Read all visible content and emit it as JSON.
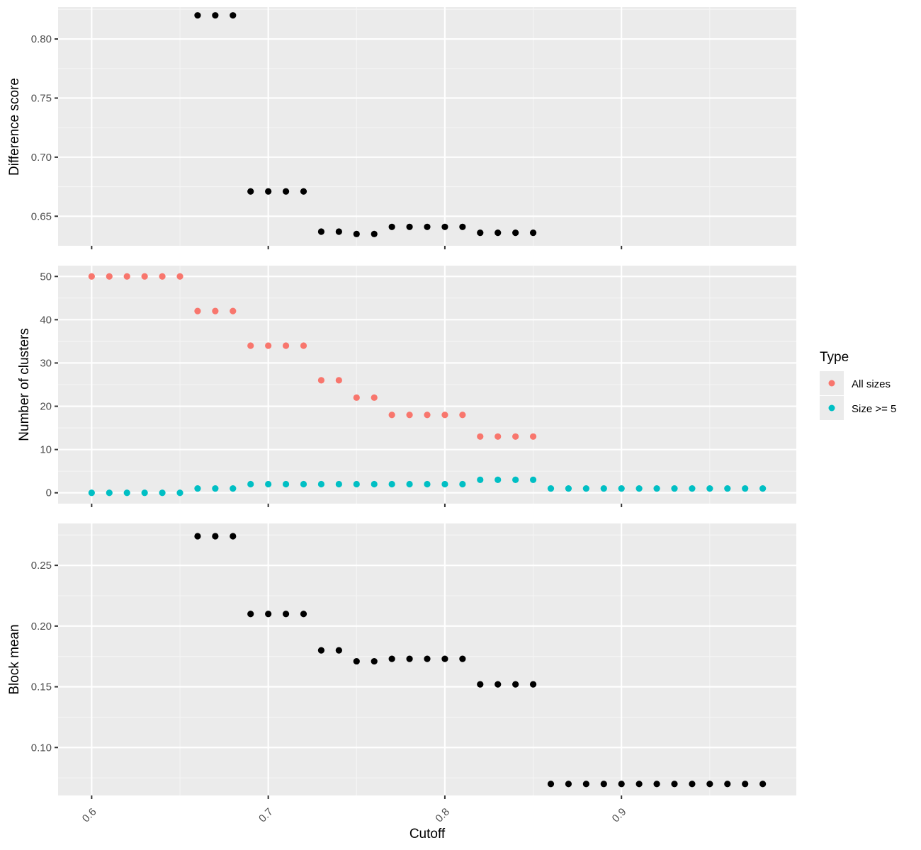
{
  "colors": {
    "panel_bg": "#ebebeb",
    "grid_major": "#ffffff",
    "grid_minor": "#f5f5f5",
    "axis_text": "#4d4d4d",
    "title_text": "#000000",
    "points_black": "#000000",
    "all_sizes": "#f8766d",
    "size_ge_5": "#00bfc4"
  },
  "legend": {
    "title": "Type",
    "items": [
      {
        "label": "All sizes",
        "color": "#f8766d"
      },
      {
        "label": "Size >= 5",
        "color": "#00bfc4"
      }
    ]
  },
  "chart_data": [
    {
      "type": "scatter",
      "xlabel": "Cutoff",
      "ylabel": "Difference score",
      "xlim": [
        0.581,
        0.999
      ],
      "ylim": [
        0.625,
        0.827
      ],
      "x_ticks": [
        0.6,
        0.7,
        0.8,
        0.9
      ],
      "y_ticks": [
        0.65,
        0.7,
        0.75,
        0.8
      ],
      "y_tick_labels": [
        "0.65",
        "0.70",
        "0.75",
        "0.80"
      ],
      "grid": true,
      "series": [
        {
          "color": "#000000",
          "points": [
            [
              0.66,
              0.82
            ],
            [
              0.67,
              0.82
            ],
            [
              0.68,
              0.82
            ],
            [
              0.69,
              0.671
            ],
            [
              0.7,
              0.671
            ],
            [
              0.71,
              0.671
            ],
            [
              0.72,
              0.671
            ],
            [
              0.73,
              0.637
            ],
            [
              0.74,
              0.637
            ],
            [
              0.75,
              0.635
            ],
            [
              0.76,
              0.635
            ],
            [
              0.77,
              0.641
            ],
            [
              0.78,
              0.641
            ],
            [
              0.79,
              0.641
            ],
            [
              0.8,
              0.641
            ],
            [
              0.81,
              0.641
            ],
            [
              0.82,
              0.636
            ],
            [
              0.83,
              0.636
            ],
            [
              0.84,
              0.636
            ],
            [
              0.85,
              0.636
            ]
          ]
        }
      ]
    },
    {
      "type": "scatter",
      "xlabel": "Cutoff",
      "ylabel": "Number of clusters",
      "xlim": [
        0.581,
        0.999
      ],
      "ylim": [
        -2.5,
        52.5
      ],
      "x_ticks": [
        0.6,
        0.7,
        0.8,
        0.9
      ],
      "y_ticks": [
        0,
        10,
        20,
        30,
        40,
        50
      ],
      "y_tick_labels": [
        "0",
        "10",
        "20",
        "30",
        "40",
        "50"
      ],
      "grid": true,
      "legend_position": "right",
      "series": [
        {
          "name": "All sizes",
          "color": "#f8766d",
          "points": [
            [
              0.6,
              50
            ],
            [
              0.61,
              50
            ],
            [
              0.62,
              50
            ],
            [
              0.63,
              50
            ],
            [
              0.64,
              50
            ],
            [
              0.65,
              50
            ],
            [
              0.66,
              42
            ],
            [
              0.67,
              42
            ],
            [
              0.68,
              42
            ],
            [
              0.69,
              34
            ],
            [
              0.7,
              34
            ],
            [
              0.71,
              34
            ],
            [
              0.72,
              34
            ],
            [
              0.73,
              26
            ],
            [
              0.74,
              26
            ],
            [
              0.75,
              22
            ],
            [
              0.76,
              22
            ],
            [
              0.77,
              18
            ],
            [
              0.78,
              18
            ],
            [
              0.79,
              18
            ],
            [
              0.8,
              18
            ],
            [
              0.81,
              18
            ],
            [
              0.82,
              13
            ],
            [
              0.83,
              13
            ],
            [
              0.84,
              13
            ],
            [
              0.85,
              13
            ]
          ]
        },
        {
          "name": "Size >= 5",
          "color": "#00bfc4",
          "points": [
            [
              0.6,
              0
            ],
            [
              0.61,
              0
            ],
            [
              0.62,
              0
            ],
            [
              0.63,
              0
            ],
            [
              0.64,
              0
            ],
            [
              0.65,
              0
            ],
            [
              0.66,
              1
            ],
            [
              0.67,
              1
            ],
            [
              0.68,
              1
            ],
            [
              0.69,
              2
            ],
            [
              0.7,
              2
            ],
            [
              0.71,
              2
            ],
            [
              0.72,
              2
            ],
            [
              0.73,
              2
            ],
            [
              0.74,
              2
            ],
            [
              0.75,
              2
            ],
            [
              0.76,
              2
            ],
            [
              0.77,
              2
            ],
            [
              0.78,
              2
            ],
            [
              0.79,
              2
            ],
            [
              0.8,
              2
            ],
            [
              0.81,
              2
            ],
            [
              0.82,
              3
            ],
            [
              0.83,
              3
            ],
            [
              0.84,
              3
            ],
            [
              0.85,
              3
            ],
            [
              0.86,
              1
            ],
            [
              0.87,
              1
            ],
            [
              0.88,
              1
            ],
            [
              0.89,
              1
            ],
            [
              0.9,
              1
            ],
            [
              0.91,
              1
            ],
            [
              0.92,
              1
            ],
            [
              0.93,
              1
            ],
            [
              0.94,
              1
            ],
            [
              0.95,
              1
            ],
            [
              0.96,
              1
            ],
            [
              0.97,
              1
            ],
            [
              0.98,
              1
            ]
          ]
        }
      ]
    },
    {
      "type": "scatter",
      "xlabel": "Cutoff",
      "ylabel": "Block mean",
      "xlim": [
        0.581,
        0.999
      ],
      "ylim": [
        0.0605,
        0.2845
      ],
      "x_ticks": [
        0.6,
        0.7,
        0.8,
        0.9
      ],
      "x_tick_labels": [
        "0.6",
        "0.7",
        "0.8",
        "0.9"
      ],
      "y_ticks": [
        0.1,
        0.15,
        0.2,
        0.25
      ],
      "y_tick_labels": [
        "0.10",
        "0.15",
        "0.20",
        "0.25"
      ],
      "grid": true,
      "series": [
        {
          "color": "#000000",
          "points": [
            [
              0.66,
              0.274
            ],
            [
              0.67,
              0.274
            ],
            [
              0.68,
              0.274
            ],
            [
              0.69,
              0.21
            ],
            [
              0.7,
              0.21
            ],
            [
              0.71,
              0.21
            ],
            [
              0.72,
              0.21
            ],
            [
              0.73,
              0.18
            ],
            [
              0.74,
              0.18
            ],
            [
              0.75,
              0.171
            ],
            [
              0.76,
              0.171
            ],
            [
              0.77,
              0.173
            ],
            [
              0.78,
              0.173
            ],
            [
              0.79,
              0.173
            ],
            [
              0.8,
              0.173
            ],
            [
              0.81,
              0.173
            ],
            [
              0.82,
              0.152
            ],
            [
              0.83,
              0.152
            ],
            [
              0.84,
              0.152
            ],
            [
              0.85,
              0.152
            ],
            [
              0.86,
              0.07
            ],
            [
              0.87,
              0.07
            ],
            [
              0.88,
              0.07
            ],
            [
              0.89,
              0.07
            ],
            [
              0.9,
              0.07
            ],
            [
              0.91,
              0.07
            ],
            [
              0.92,
              0.07
            ],
            [
              0.93,
              0.07
            ],
            [
              0.94,
              0.07
            ],
            [
              0.95,
              0.07
            ],
            [
              0.96,
              0.07
            ],
            [
              0.97,
              0.07
            ],
            [
              0.98,
              0.07
            ]
          ]
        }
      ]
    }
  ]
}
